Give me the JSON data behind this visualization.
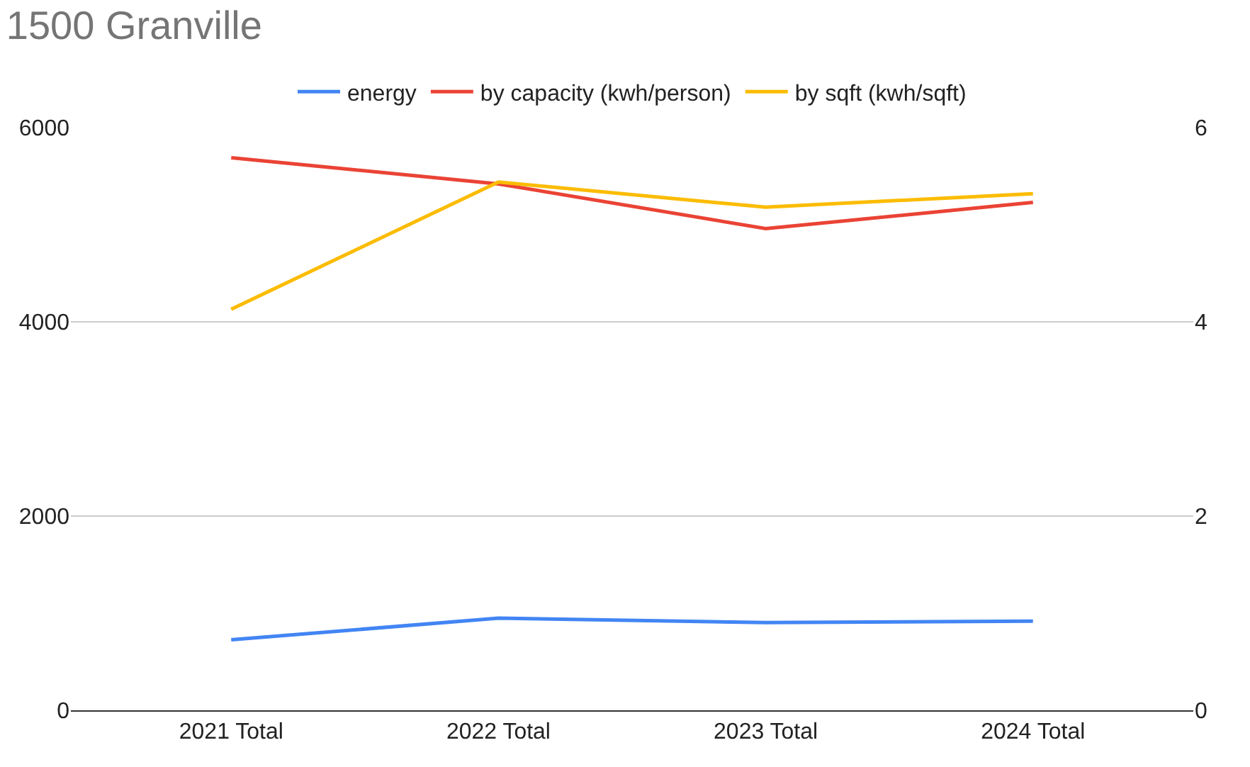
{
  "chart_data": {
    "type": "line",
    "title": "1500 Granville",
    "categories": [
      "2021 Total",
      "2022 Total",
      "2023 Total",
      "2024 Total"
    ],
    "series": [
      {
        "name": "energy",
        "color": "#4285f4",
        "values": [
          726,
          948,
          903,
          918
        ]
      },
      {
        "name": "by capacity (kwh/person)",
        "color": "#ea4335",
        "values": [
          5690,
          5420,
          4960,
          5230
        ]
      },
      {
        "name": "by sqft (kwh/sqft)",
        "color": "#fbbc04",
        "values": [
          4.13,
          5.44,
          5.18,
          5.32
        ],
        "axis": "y2"
      }
    ],
    "ylim": [
      0,
      6000
    ],
    "yticks": [
      0,
      2000,
      4000,
      6000
    ],
    "y2lim": [
      0,
      6
    ],
    "y2ticks": [
      0,
      2,
      4,
      6
    ],
    "grid": "y",
    "legend": "top",
    "marker": "none",
    "line_style": "solid"
  }
}
